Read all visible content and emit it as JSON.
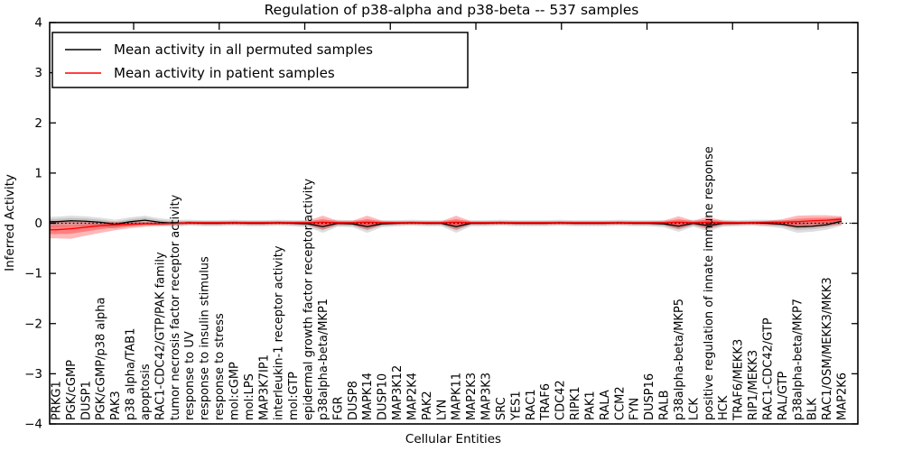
{
  "figure": {
    "title": "Regulation of p38-alpha and p38-beta -- 537 samples",
    "xlabel": "Cellular Entities",
    "ylabel": "Inferred Activity"
  },
  "legend": {
    "position": "upper left",
    "entries": [
      {
        "label": "Mean activity in all permuted samples",
        "color": "#000000"
      },
      {
        "label": "Mean activity in patient samples",
        "color": "#ff0000"
      }
    ]
  },
  "chart_data": {
    "type": "line",
    "title": "Regulation of p38-alpha and p38-beta -- 537 samples",
    "xlabel": "Cellular Entities",
    "ylabel": "Inferred Activity",
    "ylim": [
      -4,
      4
    ],
    "yticks": [
      4,
      3,
      2,
      1,
      0,
      -1,
      -2,
      -3,
      -4
    ],
    "grid": false,
    "zero_reference_line": "black dotted at y=0",
    "legend_position": "upper left",
    "categories": [
      "PRKG1",
      "PGK/cGMP",
      "DUSP1",
      "PGK/cGMP/p38 alpha",
      "PAK3",
      "p38 alpha/TAB1",
      "apoptosis",
      "RAC1-CDC42/GTP/PAK family",
      "tumor necrosis factor receptor activity",
      "response to UV",
      "response to insulin stimulus",
      "response to stress",
      "mol:cGMP",
      "mol:LPS",
      "MAP3K7IP1",
      "interleukin-1 receptor activity",
      "mol:GTP",
      "epidermal growth factor receptor activity",
      "p38alpha-beta/MKP1",
      "FGR",
      "DUSP8",
      "MAPK14",
      "DUSP10",
      "MAP3K12",
      "MAP2K4",
      "PAK2",
      "LYN",
      "MAPK11",
      "MAP2K3",
      "MAP3K3",
      "SRC",
      "YES1",
      "RAC1",
      "TRAF6",
      "CDC42",
      "RIPK1",
      "PAK1",
      "RALA",
      "CCM2",
      "FYN",
      "DUSP16",
      "RALB",
      "p38alpha-beta/MKP5",
      "LCK",
      "positive regulation of innate immune response",
      "HCK",
      "TRAF6/MEKK3",
      "RIP1/MEKK3",
      "RAC1-CDC42/GTP",
      "RAL/GTP",
      "p38alpha-beta/MKP7",
      "BLK",
      "RAC1/OSM/MEKK3/MKK3",
      "MAP2K6"
    ],
    "series": [
      {
        "name": "Mean activity in all permuted samples",
        "color": "#000000",
        "band_color": "#000000",
        "values": [
          0.03,
          0.05,
          0.04,
          0.02,
          -0.02,
          0.03,
          0.06,
          0.02,
          0.0,
          0.01,
          0.0,
          0.0,
          0.01,
          0.0,
          0.0,
          0.01,
          0.0,
          -0.01,
          -0.07,
          0.0,
          -0.01,
          -0.07,
          -0.01,
          0.0,
          0.01,
          0.0,
          0.0,
          -0.07,
          0.0,
          0.0,
          0.01,
          0.0,
          0.0,
          0.0,
          0.01,
          0.0,
          0.0,
          0.0,
          0.01,
          0.0,
          0.0,
          -0.01,
          -0.06,
          0.0,
          -0.05,
          0.0,
          0.0,
          0.01,
          0.0,
          -0.02,
          -0.07,
          -0.06,
          -0.03,
          0.04
        ],
        "band_half_width": [
          0.1,
          0.1,
          0.1,
          0.09,
          0.09,
          0.09,
          0.09,
          0.08,
          0.07,
          0.06,
          0.06,
          0.06,
          0.06,
          0.06,
          0.06,
          0.06,
          0.06,
          0.07,
          0.12,
          0.07,
          0.07,
          0.12,
          0.07,
          0.06,
          0.06,
          0.06,
          0.06,
          0.12,
          0.06,
          0.06,
          0.06,
          0.06,
          0.06,
          0.06,
          0.06,
          0.06,
          0.06,
          0.06,
          0.06,
          0.06,
          0.06,
          0.07,
          0.11,
          0.07,
          0.11,
          0.07,
          0.06,
          0.06,
          0.07,
          0.08,
          0.12,
          0.11,
          0.1,
          0.09
        ]
      },
      {
        "name": "Mean activity in patient samples",
        "color": "#ff0000",
        "band_color": "#ff0000",
        "values": [
          -0.13,
          -0.11,
          -0.08,
          -0.05,
          -0.03,
          -0.02,
          -0.01,
          -0.01,
          0.0,
          0.01,
          0.01,
          0.01,
          0.01,
          0.01,
          0.01,
          0.01,
          0.01,
          0.01,
          0.02,
          0.01,
          0.01,
          0.02,
          0.01,
          0.01,
          0.01,
          0.01,
          0.01,
          0.02,
          0.01,
          0.01,
          0.01,
          0.01,
          0.01,
          0.01,
          0.01,
          0.01,
          0.01,
          0.01,
          0.01,
          0.01,
          0.01,
          0.01,
          0.02,
          0.01,
          0.02,
          0.01,
          0.01,
          0.01,
          0.02,
          0.02,
          0.03,
          0.05,
          0.06,
          0.08
        ],
        "band_lower": [
          -0.3,
          -0.31,
          -0.25,
          -0.19,
          -0.14,
          -0.1,
          -0.07,
          -0.05,
          -0.04,
          -0.03,
          -0.03,
          -0.03,
          -0.03,
          -0.03,
          -0.03,
          -0.03,
          -0.03,
          -0.04,
          -0.13,
          -0.04,
          -0.04,
          -0.13,
          -0.04,
          -0.03,
          -0.03,
          -0.03,
          -0.03,
          -0.13,
          -0.03,
          -0.03,
          -0.03,
          -0.03,
          -0.03,
          -0.03,
          -0.03,
          -0.03,
          -0.03,
          -0.03,
          -0.03,
          -0.03,
          -0.03,
          -0.04,
          -0.12,
          -0.04,
          -0.11,
          -0.04,
          -0.03,
          -0.03,
          -0.04,
          -0.05,
          -0.1,
          -0.08,
          -0.06,
          -0.03
        ],
        "band_upper": [
          0.05,
          0.04,
          0.03,
          0.03,
          0.03,
          0.03,
          0.03,
          0.03,
          0.03,
          0.04,
          0.04,
          0.04,
          0.04,
          0.04,
          0.04,
          0.04,
          0.04,
          0.05,
          0.15,
          0.05,
          0.05,
          0.15,
          0.05,
          0.04,
          0.04,
          0.04,
          0.04,
          0.15,
          0.04,
          0.04,
          0.04,
          0.04,
          0.04,
          0.04,
          0.04,
          0.04,
          0.04,
          0.04,
          0.04,
          0.04,
          0.04,
          0.05,
          0.14,
          0.05,
          0.13,
          0.05,
          0.04,
          0.04,
          0.05,
          0.08,
          0.15,
          0.16,
          0.16,
          0.14
        ]
      }
    ]
  }
}
